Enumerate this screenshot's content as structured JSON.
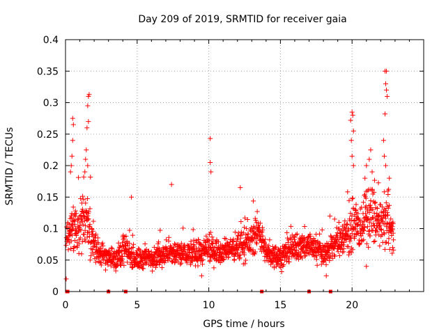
{
  "chart_data": {
    "type": "scatter",
    "title": "Day 209 of 2019, SRMTID for receiver gaia",
    "xlabel": "GPS time / hours",
    "ylabel": "SRMTID / TECUs",
    "xlim": [
      0,
      25
    ],
    "ylim": [
      0,
      0.4
    ],
    "x_ticks": [
      0,
      5,
      10,
      15,
      20
    ],
    "x_tick_labels": [
      "0",
      "5",
      "10",
      "15",
      "20"
    ],
    "y_ticks": [
      0,
      0.05,
      0.1,
      0.15,
      0.2,
      0.25,
      0.3,
      0.35,
      0.4
    ],
    "y_tick_labels": [
      "0",
      "0.05",
      "0.1",
      "0.15",
      "0.2",
      "0.25",
      "0.3",
      "0.35",
      "0.4"
    ],
    "grid": true,
    "marker": "plus",
    "color": "#ff0000",
    "zero_markers_x": [
      0.1,
      0.15,
      3.0,
      4.2,
      13.7,
      17.0,
      18.5
    ],
    "series_profile": {
      "time_hours": [
        0.0,
        0.5,
        1.0,
        1.5,
        2.0,
        2.5,
        3.0,
        3.5,
        4.0,
        4.5,
        5.0,
        6.0,
        7.0,
        8.0,
        9.0,
        10.0,
        11.0,
        12.0,
        13.0,
        13.5,
        14.0,
        15.0,
        16.0,
        17.0,
        18.0,
        19.0,
        19.5,
        20.0,
        20.5,
        21.0,
        21.5,
        22.0,
        22.5,
        22.9
      ],
      "srmtid_median": [
        0.09,
        0.1,
        0.1,
        0.12,
        0.07,
        0.06,
        0.055,
        0.05,
        0.07,
        0.06,
        0.05,
        0.055,
        0.06,
        0.06,
        0.06,
        0.065,
        0.065,
        0.07,
        0.08,
        0.1,
        0.06,
        0.055,
        0.07,
        0.075,
        0.06,
        0.08,
        0.09,
        0.1,
        0.1,
        0.12,
        0.12,
        0.1,
        0.12,
        0.08
      ],
      "srmtid_spread": [
        0.03,
        0.04,
        0.04,
        0.06,
        0.03,
        0.02,
        0.02,
        0.02,
        0.03,
        0.02,
        0.02,
        0.02,
        0.02,
        0.025,
        0.02,
        0.025,
        0.02,
        0.025,
        0.03,
        0.03,
        0.02,
        0.02,
        0.025,
        0.025,
        0.02,
        0.03,
        0.035,
        0.04,
        0.04,
        0.05,
        0.05,
        0.04,
        0.05,
        0.03
      ]
    },
    "outliers": [
      {
        "x": 0.5,
        "y": 0.275
      },
      {
        "x": 0.55,
        "y": 0.265
      },
      {
        "x": 0.5,
        "y": 0.24
      },
      {
        "x": 0.45,
        "y": 0.215
      },
      {
        "x": 0.4,
        "y": 0.2
      },
      {
        "x": 0.35,
        "y": 0.19
      },
      {
        "x": 1.6,
        "y": 0.31
      },
      {
        "x": 1.65,
        "y": 0.313
      },
      {
        "x": 1.55,
        "y": 0.295
      },
      {
        "x": 1.6,
        "y": 0.27
      },
      {
        "x": 1.5,
        "y": 0.26
      },
      {
        "x": 1.45,
        "y": 0.225
      },
      {
        "x": 1.4,
        "y": 0.21
      },
      {
        "x": 1.55,
        "y": 0.2
      },
      {
        "x": 1.35,
        "y": 0.19
      },
      {
        "x": 10.1,
        "y": 0.243
      },
      {
        "x": 10.1,
        "y": 0.205
      },
      {
        "x": 10.15,
        "y": 0.19
      },
      {
        "x": 7.4,
        "y": 0.17
      },
      {
        "x": 12.2,
        "y": 0.165
      },
      {
        "x": 4.6,
        "y": 0.15
      },
      {
        "x": 20.0,
        "y": 0.285
      },
      {
        "x": 20.05,
        "y": 0.28
      },
      {
        "x": 19.9,
        "y": 0.272
      },
      {
        "x": 20.1,
        "y": 0.255
      },
      {
        "x": 19.95,
        "y": 0.24
      },
      {
        "x": 20.0,
        "y": 0.215
      },
      {
        "x": 20.1,
        "y": 0.2
      },
      {
        "x": 21.0,
        "y": 0.2
      },
      {
        "x": 21.2,
        "y": 0.21
      },
      {
        "x": 20.9,
        "y": 0.18
      },
      {
        "x": 21.3,
        "y": 0.225
      },
      {
        "x": 21.4,
        "y": 0.19
      },
      {
        "x": 22.3,
        "y": 0.35
      },
      {
        "x": 22.4,
        "y": 0.35
      },
      {
        "x": 22.35,
        "y": 0.33
      },
      {
        "x": 22.4,
        "y": 0.32
      },
      {
        "x": 22.45,
        "y": 0.31
      },
      {
        "x": 22.3,
        "y": 0.282
      },
      {
        "x": 22.2,
        "y": 0.24
      },
      {
        "x": 22.25,
        "y": 0.215
      },
      {
        "x": 22.35,
        "y": 0.2
      },
      {
        "x": 22.6,
        "y": 0.18
      },
      {
        "x": 22.5,
        "y": 0.16
      },
      {
        "x": 0.05,
        "y": 0.02
      },
      {
        "x": 21.0,
        "y": 0.04
      },
      {
        "x": 18.2,
        "y": 0.025
      },
      {
        "x": 9.5,
        "y": 0.025
      }
    ]
  }
}
